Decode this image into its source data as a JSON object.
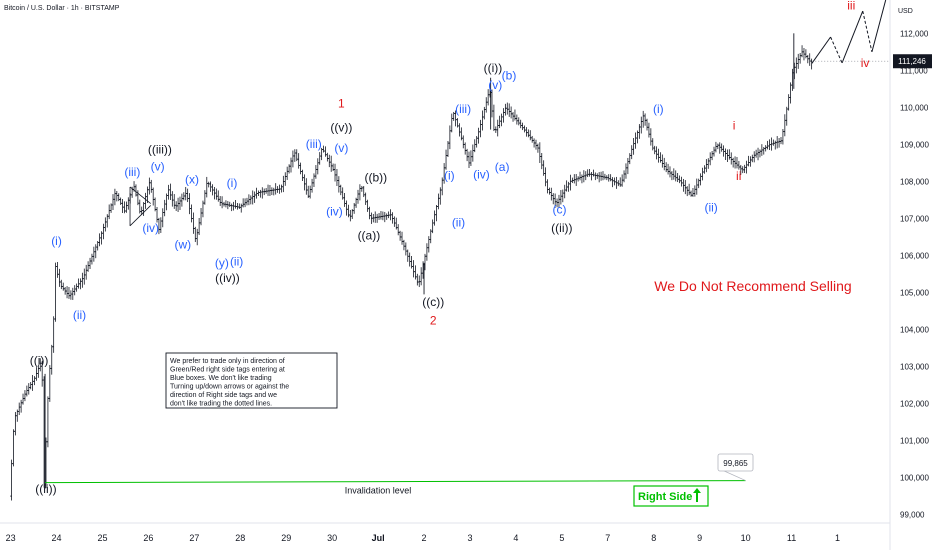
{
  "header": {
    "title": "Bitcoin / U.S. Dollar · 1h · BITSTAMP",
    "currency": "USD"
  },
  "colors": {
    "blue": "#2962ff",
    "black": "#131722",
    "red": "#e0181b",
    "green": "#00c000",
    "priceTagBg": "#131722",
    "axisText": "#131722"
  },
  "chart_data": {
    "type": "candlestick",
    "title": "Bitcoin / U.S. Dollar · 1h · BITSTAMP",
    "ylim": [
      98800,
      112900
    ],
    "xlim": [
      -0.1,
      19.1
    ],
    "y_ticks": [
      {
        "v": 99000,
        "label": "99,000"
      },
      {
        "v": 100000,
        "label": "100,000"
      },
      {
        "v": 101000,
        "label": "101,000"
      },
      {
        "v": 102000,
        "label": "102,000"
      },
      {
        "v": 103000,
        "label": "103,000"
      },
      {
        "v": 104000,
        "label": "104,000"
      },
      {
        "v": 105000,
        "label": "105,000"
      },
      {
        "v": 106000,
        "label": "106,000"
      },
      {
        "v": 107000,
        "label": "107,000"
      },
      {
        "v": 108000,
        "label": "108,000"
      },
      {
        "v": 109000,
        "label": "109,000"
      },
      {
        "v": 110000,
        "label": "110,000"
      },
      {
        "v": 111000,
        "label": "111,000"
      },
      {
        "v": 112000,
        "label": "112,000"
      }
    ],
    "x_ticks": [
      {
        "x": 0,
        "label": "23"
      },
      {
        "x": 1,
        "label": "24"
      },
      {
        "x": 2,
        "label": "25"
      },
      {
        "x": 3,
        "label": "26"
      },
      {
        "x": 4,
        "label": "27"
      },
      {
        "x": 5,
        "label": "28"
      },
      {
        "x": 6,
        "label": "29"
      },
      {
        "x": 7,
        "label": "30"
      },
      {
        "x": 8,
        "label": "Jul",
        "bold": true
      },
      {
        "x": 9,
        "label": "2"
      },
      {
        "x": 10,
        "label": "3"
      },
      {
        "x": 11,
        "label": "4"
      },
      {
        "x": 12,
        "label": "5"
      },
      {
        "x": 13,
        "label": "7"
      },
      {
        "x": 14,
        "label": "8"
      },
      {
        "x": 15,
        "label": "9"
      },
      {
        "x": 16,
        "label": "10"
      },
      {
        "x": 17,
        "label": "11"
      },
      {
        "x": 18,
        "label": "1"
      }
    ],
    "price_path": [
      [
        0.0,
        99500
      ],
      [
        0.1,
        101600
      ],
      [
        0.35,
        102300
      ],
      [
        0.55,
        102700
      ],
      [
        0.7,
        103200
      ],
      [
        0.75,
        99800
      ],
      [
        0.85,
        102600
      ],
      [
        0.95,
        104000
      ],
      [
        1.0,
        105700
      ],
      [
        1.1,
        105200
      ],
      [
        1.3,
        104900
      ],
      [
        1.6,
        105400
      ],
      [
        2.0,
        106600
      ],
      [
        2.3,
        107700
      ],
      [
        2.5,
        107200
      ],
      [
        2.7,
        107900
      ],
      [
        2.85,
        107100
      ],
      [
        3.05,
        108000
      ],
      [
        3.25,
        106700
      ],
      [
        3.45,
        107800
      ],
      [
        3.6,
        107300
      ],
      [
        3.85,
        107700
      ],
      [
        4.05,
        106400
      ],
      [
        4.3,
        108000
      ],
      [
        4.6,
        107400
      ],
      [
        5.0,
        107300
      ],
      [
        5.4,
        107700
      ],
      [
        5.9,
        107800
      ],
      [
        6.2,
        108800
      ],
      [
        6.5,
        107600
      ],
      [
        6.8,
        108900
      ],
      [
        7.05,
        108300
      ],
      [
        7.4,
        107000
      ],
      [
        7.65,
        107900
      ],
      [
        7.85,
        107000
      ],
      [
        8.3,
        107100
      ],
      [
        8.6,
        106200
      ],
      [
        8.9,
        105200
      ],
      [
        9.1,
        106300
      ],
      [
        9.4,
        107900
      ],
      [
        9.65,
        109900
      ],
      [
        9.85,
        109100
      ],
      [
        10.0,
        108500
      ],
      [
        10.2,
        109300
      ],
      [
        10.45,
        110500
      ],
      [
        10.55,
        109300
      ],
      [
        10.8,
        110000
      ],
      [
        11.2,
        109400
      ],
      [
        11.5,
        108900
      ],
      [
        11.7,
        107800
      ],
      [
        11.9,
        107400
      ],
      [
        12.2,
        108000
      ],
      [
        12.6,
        108200
      ],
      [
        13.0,
        108100
      ],
      [
        13.3,
        107900
      ],
      [
        13.55,
        108900
      ],
      [
        13.8,
        109800
      ],
      [
        14.0,
        108900
      ],
      [
        14.3,
        108300
      ],
      [
        14.6,
        108000
      ],
      [
        14.85,
        107600
      ],
      [
        15.1,
        108300
      ],
      [
        15.4,
        109000
      ],
      [
        15.7,
        108600
      ],
      [
        15.95,
        108300
      ],
      [
        16.2,
        108700
      ],
      [
        16.55,
        109000
      ],
      [
        16.8,
        109100
      ],
      [
        16.95,
        110200
      ],
      [
        17.05,
        111000
      ],
      [
        17.25,
        111500
      ],
      [
        17.45,
        111200
      ]
    ],
    "projection": [
      [
        17.45,
        111200
      ],
      [
        17.85,
        111900
      ],
      [
        18.1,
        111200
      ],
      [
        18.55,
        112600
      ],
      [
        18.75,
        111500
      ],
      [
        19.05,
        112900
      ]
    ],
    "projection_dashed_segments": [
      1,
      3
    ],
    "invalidation": {
      "value": 99865,
      "x_start": 0.75,
      "x_end": 16.0,
      "label": "Invalidation level",
      "price_label": "99,865"
    },
    "last_price": {
      "value": 111246,
      "label": "111,246"
    },
    "labels": [
      {
        "text": "((i))",
        "x": 0.62,
        "y": 103050,
        "color": "black"
      },
      {
        "text": "((ii))",
        "x": 0.77,
        "y": 99800,
        "color": "black",
        "below": true
      },
      {
        "text": "(i)",
        "x": 1.0,
        "y": 106280,
        "color": "blue"
      },
      {
        "text": "(ii)",
        "x": 1.5,
        "y": 104500,
        "color": "blue",
        "below": true
      },
      {
        "text": "(iii)",
        "x": 2.65,
        "y": 108150,
        "color": "blue"
      },
      {
        "text": "(iv)",
        "x": 3.05,
        "y": 106850,
        "color": "blue",
        "below": true
      },
      {
        "text": "(v)",
        "x": 3.2,
        "y": 108300,
        "color": "blue"
      },
      {
        "text": "((iii))",
        "x": 3.25,
        "y": 108750,
        "color": "black"
      },
      {
        "text": "(w)",
        "x": 3.75,
        "y": 106400,
        "color": "blue",
        "below": true
      },
      {
        "text": "(x)",
        "x": 3.95,
        "y": 107950,
        "color": "blue"
      },
      {
        "text": "(y)",
        "x": 4.6,
        "y": 105900,
        "color": "blue",
        "below": true
      },
      {
        "text": "(ii)",
        "x": 4.92,
        "y": 105950,
        "color": "blue",
        "below": true
      },
      {
        "text": "((iv))",
        "x": 4.72,
        "y": 105500,
        "color": "black",
        "below": true
      },
      {
        "text": "(i)",
        "x": 4.82,
        "y": 107850,
        "color": "blue"
      },
      {
        "text": "(iii)",
        "x": 6.6,
        "y": 108900,
        "color": "blue"
      },
      {
        "text": "(iv)",
        "x": 7.05,
        "y": 107300,
        "color": "blue",
        "below": true
      },
      {
        "text": "(v)",
        "x": 7.2,
        "y": 108800,
        "color": "blue"
      },
      {
        "text": "((v))",
        "x": 7.2,
        "y": 109350,
        "color": "black"
      },
      {
        "text": "1",
        "x": 7.2,
        "y": 110000,
        "color": "red"
      },
      {
        "text": "((a))",
        "x": 7.8,
        "y": 106650,
        "color": "black",
        "below": true
      },
      {
        "text": "((b))",
        "x": 7.95,
        "y": 108000,
        "color": "black"
      },
      {
        "text": "((c))",
        "x": 9.2,
        "y": 104850,
        "color": "black",
        "below": true
      },
      {
        "text": "2",
        "x": 9.2,
        "y": 104350,
        "color": "red",
        "below": true
      },
      {
        "text": "(i)",
        "x": 9.55,
        "y": 108050,
        "color": "blue"
      },
      {
        "text": "(ii)",
        "x": 9.75,
        "y": 107000,
        "color": "blue",
        "below": true
      },
      {
        "text": "(iii)",
        "x": 9.85,
        "y": 109850,
        "color": "blue"
      },
      {
        "text": "(iv)",
        "x": 10.25,
        "y": 108300,
        "color": "blue",
        "below": true
      },
      {
        "text": "(a)",
        "x": 10.7,
        "y": 108500,
        "color": "blue",
        "below": true
      },
      {
        "text": "(v)",
        "x": 10.55,
        "y": 110500,
        "color": "blue"
      },
      {
        "text": "((i))",
        "x": 10.5,
        "y": 110950,
        "color": "black"
      },
      {
        "text": "(b)",
        "x": 10.85,
        "y": 110750,
        "color": "blue"
      },
      {
        "text": "(c)",
        "x": 11.95,
        "y": 107350,
        "color": "blue",
        "below": true
      },
      {
        "text": "((ii))",
        "x": 12.0,
        "y": 106850,
        "color": "black",
        "below": true
      },
      {
        "text": "(i)",
        "x": 14.1,
        "y": 109850,
        "color": "blue"
      },
      {
        "text": "(ii)",
        "x": 15.25,
        "y": 107400,
        "color": "blue",
        "below": true
      },
      {
        "text": "i",
        "x": 15.75,
        "y": 109400,
        "color": "red"
      },
      {
        "text": "ii",
        "x": 15.85,
        "y": 108250,
        "color": "red",
        "below": true
      },
      {
        "text": "iii",
        "x": 18.3,
        "y": 112650,
        "color": "red"
      },
      {
        "text": "iv",
        "x": 18.6,
        "y": 111300,
        "color": "red",
        "below": true
      }
    ]
  },
  "notes": {
    "box_text": "We prefer to trade only in direction of Green/Red right side tags entering at Blue boxes. We don't like trading Turning up/down arrows or against the direction of Right side tags and we don't like trading the dotted lines.",
    "warning": "We Do Not Recommend Selling",
    "right_side": "Right Side"
  }
}
